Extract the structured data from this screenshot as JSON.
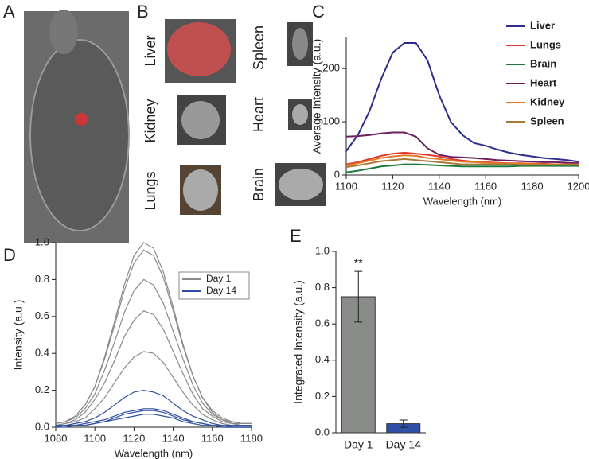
{
  "panel_labels": [
    "A",
    "B",
    "C",
    "D",
    "E"
  ],
  "organs": [
    "Liver",
    "Spleen",
    "Kidney",
    "Heart",
    "Lungs",
    "Brain"
  ],
  "chart_data": [
    {
      "type": "line",
      "x_label": "Wavelength (nm)",
      "y_label": "Average Intensity (a.u.)",
      "x": [
        1100,
        1105,
        1110,
        1115,
        1120,
        1125,
        1130,
        1135,
        1140,
        1145,
        1150,
        1155,
        1160,
        1165,
        1170,
        1175,
        1180,
        1185,
        1190,
        1195,
        1200
      ],
      "xlim": [
        1100,
        1200
      ],
      "xticks": [
        1100,
        1120,
        1140,
        1160,
        1180,
        1200
      ],
      "ylim": [
        0,
        260
      ],
      "yticks": [
        0,
        100,
        200
      ],
      "legend": "upper right",
      "legend_box": false,
      "series": [
        {
          "name": "Liver",
          "color": "#2e2d8c",
          "values": [
            45,
            75,
            120,
            180,
            230,
            248,
            248,
            215,
            150,
            100,
            75,
            60,
            55,
            48,
            42,
            38,
            35,
            32,
            30,
            28,
            25
          ]
        },
        {
          "name": "Lungs",
          "color": "#e03a2f",
          "values": [
            20,
            24,
            30,
            36,
            40,
            42,
            40,
            38,
            35,
            30,
            27,
            25,
            24,
            23,
            22,
            22,
            21,
            21,
            20,
            20,
            20
          ]
        },
        {
          "name": "Brain",
          "color": "#1e7a3c",
          "values": [
            5,
            8,
            12,
            16,
            18,
            20,
            20,
            19,
            18,
            17,
            16,
            16,
            16,
            16,
            16,
            17,
            17,
            17,
            17,
            17,
            17
          ]
        },
        {
          "name": "Heart",
          "color": "#6b1f5e",
          "values": [
            72,
            73,
            75,
            78,
            80,
            80,
            72,
            50,
            38,
            34,
            33,
            32,
            30,
            28,
            27,
            26,
            25,
            24,
            24,
            23,
            22
          ]
        },
        {
          "name": "Kidney",
          "color": "#e07a28",
          "values": [
            18,
            22,
            27,
            32,
            35,
            37,
            36,
            32,
            30,
            27,
            25,
            24,
            23,
            22,
            22,
            21,
            21,
            20,
            20,
            20,
            20
          ]
        },
        {
          "name": "Spleen",
          "color": "#a87a3a",
          "values": [
            15,
            18,
            22,
            26,
            28,
            30,
            28,
            26,
            24,
            22,
            20,
            20,
            20,
            20,
            20,
            19,
            19,
            19,
            19,
            19,
            19
          ]
        }
      ]
    },
    {
      "type": "line",
      "x_label": "Wavelength (nm)",
      "y_label": "Intensity (a.u.)",
      "x": [
        1080,
        1085,
        1090,
        1095,
        1100,
        1105,
        1110,
        1115,
        1120,
        1125,
        1130,
        1135,
        1140,
        1145,
        1150,
        1155,
        1160,
        1165,
        1170,
        1175,
        1180
      ],
      "xlim": [
        1080,
        1180
      ],
      "xticks": [
        1080,
        1100,
        1120,
        1140,
        1160,
        1180
      ],
      "ylim": [
        0,
        1
      ],
      "yticks": [
        {
          "value": 0,
          "label": "0.0"
        },
        0.2,
        0.4,
        0.6,
        0.8,
        {
          "value": 1,
          "label": "1.0"
        }
      ],
      "legend": "upper right",
      "legend_box": true,
      "series": [
        {
          "name": "Day 1",
          "color": "#8a8a8a",
          "values": [
            [
              0.02,
              0.03,
              0.06,
              0.12,
              0.22,
              0.38,
              0.57,
              0.77,
              0.93,
              1.0,
              0.97,
              0.84,
              0.65,
              0.45,
              0.28,
              0.16,
              0.09,
              0.05,
              0.03,
              0.02,
              0.02
            ],
            [
              0.02,
              0.03,
              0.06,
              0.12,
              0.22,
              0.37,
              0.55,
              0.74,
              0.89,
              0.96,
              0.93,
              0.81,
              0.63,
              0.44,
              0.28,
              0.16,
              0.08,
              0.04,
              0.03,
              0.02,
              0.02
            ],
            [
              0.02,
              0.03,
              0.05,
              0.1,
              0.18,
              0.31,
              0.46,
              0.62,
              0.74,
              0.8,
              0.77,
              0.67,
              0.52,
              0.37,
              0.23,
              0.13,
              0.07,
              0.04,
              0.02,
              0.02,
              0.02
            ],
            [
              0.01,
              0.02,
              0.04,
              0.08,
              0.15,
              0.24,
              0.36,
              0.49,
              0.58,
              0.63,
              0.61,
              0.53,
              0.41,
              0.29,
              0.18,
              0.1,
              0.06,
              0.03,
              0.02,
              0.01,
              0.01
            ],
            [
              0.01,
              0.02,
              0.03,
              0.05,
              0.1,
              0.16,
              0.24,
              0.32,
              0.38,
              0.41,
              0.4,
              0.35,
              0.27,
              0.19,
              0.12,
              0.07,
              0.04,
              0.02,
              0.01,
              0.01,
              0.01
            ]
          ]
        },
        {
          "name": "Day 14",
          "color": "#2f4f9e",
          "values": [
            [
              0.01,
              0.01,
              0.02,
              0.03,
              0.05,
              0.08,
              0.12,
              0.16,
              0.19,
              0.2,
              0.19,
              0.17,
              0.13,
              0.09,
              0.06,
              0.04,
              0.02,
              0.01,
              0.01,
              0.01,
              0.01
            ],
            [
              0.0,
              0.01,
              0.01,
              0.02,
              0.03,
              0.04,
              0.06,
              0.08,
              0.09,
              0.1,
              0.1,
              0.09,
              0.07,
              0.05,
              0.03,
              0.02,
              0.01,
              0.01,
              0.0,
              0.0,
              0.0
            ],
            [
              0.0,
              0.01,
              0.01,
              0.01,
              0.02,
              0.03,
              0.05,
              0.07,
              0.08,
              0.09,
              0.09,
              0.08,
              0.06,
              0.04,
              0.03,
              0.02,
              0.01,
              0.0,
              0.0,
              0.0,
              0.0
            ],
            [
              0.0,
              0.0,
              0.01,
              0.01,
              0.02,
              0.03,
              0.04,
              0.05,
              0.06,
              0.07,
              0.07,
              0.06,
              0.05,
              0.03,
              0.02,
              0.01,
              0.01,
              0.0,
              0.0,
              0.0,
              0.0
            ]
          ]
        }
      ]
    },
    {
      "type": "bar",
      "y_label": "Integrated Intensity (a.u.)",
      "categories": [
        "Day 1",
        "Day 14"
      ],
      "values": [
        0.75,
        0.05
      ],
      "errors": [
        0.14,
        0.02
      ],
      "colors": [
        "#8a8c8a",
        "#3050a8"
      ],
      "annotation": "**",
      "ylim": [
        0,
        1
      ],
      "yticks": [
        {
          "value": 0,
          "label": "0.0"
        },
        0.2,
        0.4,
        0.6,
        0.8,
        {
          "value": 1,
          "label": "1.0"
        }
      ]
    }
  ]
}
